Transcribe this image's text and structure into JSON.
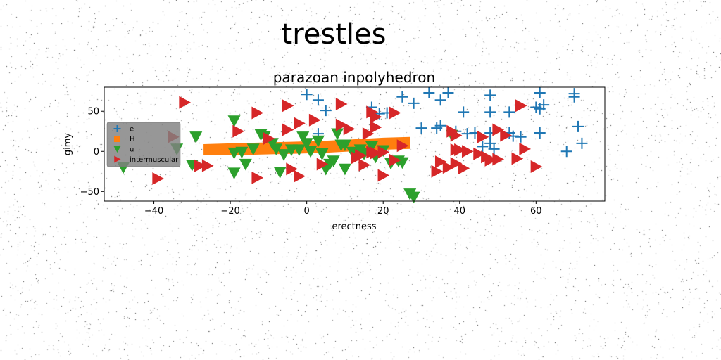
{
  "chart_data": {
    "type": "scatter",
    "suptitle": "trestles",
    "title": "parazoan inpolyhedron",
    "xlabel": "erectness",
    "ylabel": "gimy",
    "xlim": [
      -53,
      78
    ],
    "ylim": [
      -62,
      80
    ],
    "xticks": [
      -40,
      -20,
      0,
      20,
      40,
      60
    ],
    "yticks": [
      -50,
      0,
      50
    ],
    "grid": false,
    "legend_position": "center-left",
    "series": [
      {
        "name": "e",
        "marker": "plus",
        "color": "#1f77b4",
        "points": [
          [
            0,
            71
          ],
          [
            3,
            64
          ],
          [
            5,
            51
          ],
          [
            17,
            55
          ],
          [
            19,
            47
          ],
          [
            21,
            48
          ],
          [
            25,
            68
          ],
          [
            28,
            60
          ],
          [
            30,
            29
          ],
          [
            32,
            73
          ],
          [
            34,
            29
          ],
          [
            35,
            32
          ],
          [
            35,
            64
          ],
          [
            37,
            73
          ],
          [
            39,
            25
          ],
          [
            41,
            49
          ],
          [
            42,
            22
          ],
          [
            44,
            23
          ],
          [
            46,
            6
          ],
          [
            48,
            70
          ],
          [
            48,
            49
          ],
          [
            48,
            23
          ],
          [
            48,
            10
          ],
          [
            49,
            3
          ],
          [
            53,
            23
          ],
          [
            53,
            49
          ],
          [
            54,
            19
          ],
          [
            56,
            18
          ],
          [
            60,
            55
          ],
          [
            61,
            73
          ],
          [
            61,
            53
          ],
          [
            61,
            23
          ],
          [
            62,
            58
          ],
          [
            68,
            0
          ],
          [
            70,
            68
          ],
          [
            70,
            72
          ],
          [
            71,
            31
          ],
          [
            72,
            10
          ],
          [
            3,
            22
          ]
        ]
      },
      {
        "name": "H",
        "marker": "polygon",
        "color": "#ff7f0e",
        "points": [
          [
            -27,
            -5
          ],
          [
            -27,
            9
          ],
          [
            -20,
            10
          ],
          [
            -12,
            11
          ],
          [
            -4,
            12
          ],
          [
            4,
            13
          ],
          [
            12,
            15
          ],
          [
            20,
            17
          ],
          [
            27,
            18
          ],
          [
            27,
            3
          ],
          [
            20,
            2
          ],
          [
            12,
            0
          ],
          [
            4,
            -2
          ],
          [
            -4,
            -3
          ],
          [
            -12,
            -4
          ],
          [
            -20,
            -5
          ]
        ]
      },
      {
        "name": "u",
        "marker": "triangle-down",
        "color": "#2ca02c",
        "points": [
          [
            -48,
            -20
          ],
          [
            -34,
            3
          ],
          [
            -30,
            -17
          ],
          [
            -29,
            18
          ],
          [
            -19,
            -27
          ],
          [
            -19,
            -2
          ],
          [
            -19,
            38
          ],
          [
            -17,
            -1
          ],
          [
            -16,
            -16
          ],
          [
            -14,
            3
          ],
          [
            -12,
            21
          ],
          [
            -11,
            19
          ],
          [
            -9,
            10
          ],
          [
            -8,
            3
          ],
          [
            -7,
            -26
          ],
          [
            -6,
            -4
          ],
          [
            -4,
            2
          ],
          [
            -2,
            2
          ],
          [
            -1,
            18
          ],
          [
            0,
            10
          ],
          [
            1,
            0
          ],
          [
            3,
            13
          ],
          [
            4,
            -3
          ],
          [
            5,
            -22
          ],
          [
            6,
            -16
          ],
          [
            7,
            -12
          ],
          [
            8,
            22
          ],
          [
            9,
            8
          ],
          [
            10,
            -22
          ],
          [
            10,
            8
          ],
          [
            12,
            -1
          ],
          [
            14,
            2
          ],
          [
            15,
            -3
          ],
          [
            17,
            6
          ],
          [
            18,
            -7
          ],
          [
            20,
            1
          ],
          [
            22,
            -15
          ],
          [
            24,
            -12
          ],
          [
            25,
            -14
          ],
          [
            27,
            -53
          ],
          [
            28,
            -57
          ],
          [
            38,
            20
          ]
        ]
      },
      {
        "name": "intermuscular",
        "marker": "triangle-right",
        "color": "#d62728",
        "points": [
          [
            -39,
            -34
          ],
          [
            -35,
            18
          ],
          [
            -32,
            61
          ],
          [
            -28,
            -18
          ],
          [
            -26,
            -18
          ],
          [
            -18,
            25
          ],
          [
            -13,
            48
          ],
          [
            -13,
            -33
          ],
          [
            -10,
            16
          ],
          [
            -5,
            57
          ],
          [
            -5,
            27
          ],
          [
            -4,
            -22
          ],
          [
            -2,
            -31
          ],
          [
            -2,
            35
          ],
          [
            2,
            39
          ],
          [
            4,
            -16
          ],
          [
            9,
            59
          ],
          [
            9,
            33
          ],
          [
            11,
            28
          ],
          [
            13,
            -8
          ],
          [
            14,
            -5
          ],
          [
            15,
            -17
          ],
          [
            16,
            22
          ],
          [
            17,
            -1
          ],
          [
            17,
            49
          ],
          [
            18,
            30
          ],
          [
            18,
            43
          ],
          [
            18,
            -2
          ],
          [
            20,
            -1
          ],
          [
            20,
            -30
          ],
          [
            23,
            48
          ],
          [
            23,
            -11
          ],
          [
            25,
            7
          ],
          [
            34,
            -25
          ],
          [
            35,
            -13
          ],
          [
            37,
            -20
          ],
          [
            38,
            25
          ],
          [
            39,
            20
          ],
          [
            39,
            -15
          ],
          [
            39,
            2
          ],
          [
            40,
            2
          ],
          [
            41,
            -21
          ],
          [
            42,
            0
          ],
          [
            45,
            -3
          ],
          [
            46,
            18
          ],
          [
            47,
            -7
          ],
          [
            48,
            -11
          ],
          [
            50,
            27
          ],
          [
            50,
            -10
          ],
          [
            52,
            20
          ],
          [
            55,
            -9
          ],
          [
            56,
            57
          ],
          [
            57,
            3
          ],
          [
            60,
            -19
          ]
        ]
      }
    ]
  }
}
